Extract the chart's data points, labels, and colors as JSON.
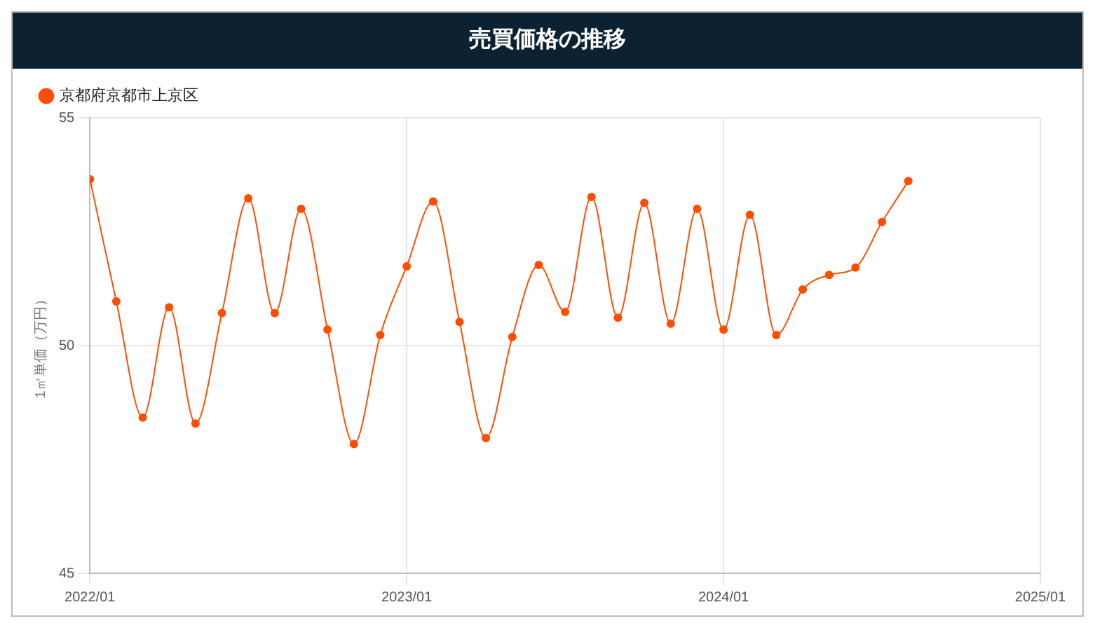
{
  "chart_data": {
    "type": "line",
    "title": "売買価格の推移",
    "ylabel": "1㎡単価（万円）",
    "x": [
      "2022-01",
      "2022-02",
      "2022-03",
      "2022-04",
      "2022-05",
      "2022-06",
      "2022-07",
      "2022-08",
      "2022-09",
      "2022-10",
      "2022-11",
      "2022-12",
      "2023-01",
      "2023-02",
      "2023-03",
      "2023-04",
      "2023-05",
      "2023-06",
      "2023-07",
      "2023-08",
      "2023-09",
      "2023-10",
      "2023-11",
      "2023-12",
      "2024-01",
      "2024-02",
      "2024-03",
      "2024-04",
      "2024-05",
      "2024-06",
      "2024-07",
      "2024-08"
    ],
    "series": [
      {
        "name": "京都府京都市上京区",
        "color": "#ff4d00",
        "values": [
          53.65,
          50.97,
          48.42,
          50.84,
          48.29,
          50.71,
          53.23,
          50.71,
          53.0,
          50.35,
          47.84,
          50.23,
          51.74,
          53.16,
          50.52,
          47.97,
          50.19,
          51.77,
          50.74,
          53.26,
          50.61,
          53.13,
          50.48,
          53.0,
          50.35,
          52.87,
          50.23,
          51.23,
          51.55,
          51.71,
          52.71,
          53.61
        ]
      }
    ],
    "xlim": [
      "2022-01",
      "2025-01"
    ],
    "xticks": [
      {
        "value": "2022-01",
        "label": "2022/01"
      },
      {
        "value": "2023-01",
        "label": "2023/01"
      },
      {
        "value": "2024-01",
        "label": "2024/01"
      },
      {
        "value": "2025-01",
        "label": "2025/01"
      }
    ],
    "ylim": [
      45,
      55
    ],
    "yticks": [
      45,
      50,
      55
    ],
    "grid": true,
    "legend": "top left",
    "marker": "circle",
    "line_style": "solid"
  }
}
